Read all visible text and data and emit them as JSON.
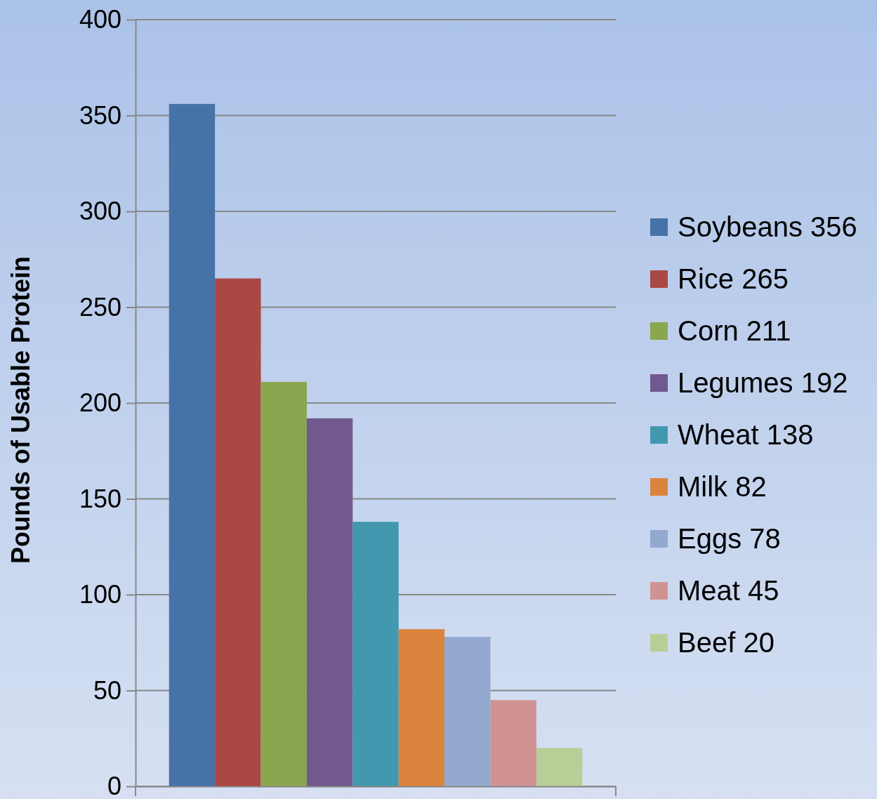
{
  "chart_data": {
    "type": "bar",
    "ylabel": "Pounds of Usable Protein",
    "categories": [
      null
    ],
    "series": [
      {
        "name": "Soybeans 356",
        "color": "#4672a8",
        "values": [
          356
        ]
      },
      {
        "name": "Rice 265",
        "color": "#aa4844",
        "values": [
          265
        ]
      },
      {
        "name": "Corn 211",
        "color": "#8aa64f",
        "values": [
          211
        ]
      },
      {
        "name": "Legumes 192",
        "color": "#71588f",
        "values": [
          192
        ]
      },
      {
        "name": "Wheat 138",
        "color": "#4298af",
        "values": [
          138
        ]
      },
      {
        "name": "Milk 82",
        "color": "#db843d",
        "values": [
          82
        ]
      },
      {
        "name": "Eggs 78",
        "color": "#93a9cf",
        "values": [
          78
        ]
      },
      {
        "name": "Meat 45",
        "color": "#d19392",
        "values": [
          45
        ]
      },
      {
        "name": "Beef 20",
        "color": "#b9cd96",
        "values": [
          20
        ]
      }
    ],
    "ylim": [
      0,
      400
    ],
    "yticks": [
      0,
      50,
      100,
      150,
      200,
      250,
      300,
      350,
      400
    ],
    "grid": "y",
    "legend": "right"
  }
}
